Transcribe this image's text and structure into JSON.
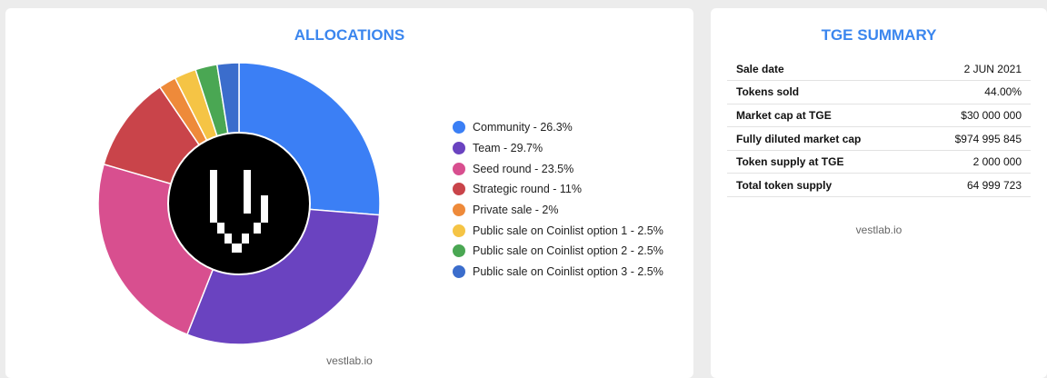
{
  "allocations": {
    "title": "ALLOCATIONS",
    "watermark": "vestlab.io"
  },
  "chart_data": {
    "type": "pie",
    "title": "ALLOCATIONS",
    "categories": [
      "Community",
      "Team",
      "Seed round",
      "Strategic round",
      "Private sale",
      "Public sale on Coinlist option 1",
      "Public sale on Coinlist option 2",
      "Public sale on Coinlist option 3"
    ],
    "values": [
      26.3,
      29.7,
      23.5,
      11,
      2,
      2.5,
      2.5,
      2.5
    ],
    "legend_labels": [
      "Community - 26.3%",
      "Team - 29.7%",
      "Seed round - 23.5%",
      "Strategic round - 11%",
      "Private sale - 2%",
      "Public sale on Coinlist option 1 - 2.5%",
      "Public sale on Coinlist option 2 - 2.5%",
      "Public sale on Coinlist option 3 - 2.5%"
    ],
    "colors": [
      "#3b7ff5",
      "#6a43c0",
      "#d84f8f",
      "#c9444a",
      "#ee8a3a",
      "#f5c445",
      "#4aa753",
      "#3b6dcc"
    ],
    "legend_position": "right",
    "donut": true,
    "center_logo": "vestlab-logo"
  },
  "tge_summary": {
    "title": "TGE SUMMARY",
    "watermark": "vestlab.io",
    "rows": [
      {
        "label": "Sale date",
        "value": "2 JUN 2021"
      },
      {
        "label": "Tokens sold",
        "value": "44.00%"
      },
      {
        "label": "Market cap at TGE",
        "value": "$30 000 000"
      },
      {
        "label": "Fully diluted market cap",
        "value": "$974 995 845"
      },
      {
        "label": "Token supply at TGE",
        "value": "2 000 000"
      },
      {
        "label": "Total token supply",
        "value": "64 999 723"
      }
    ]
  }
}
